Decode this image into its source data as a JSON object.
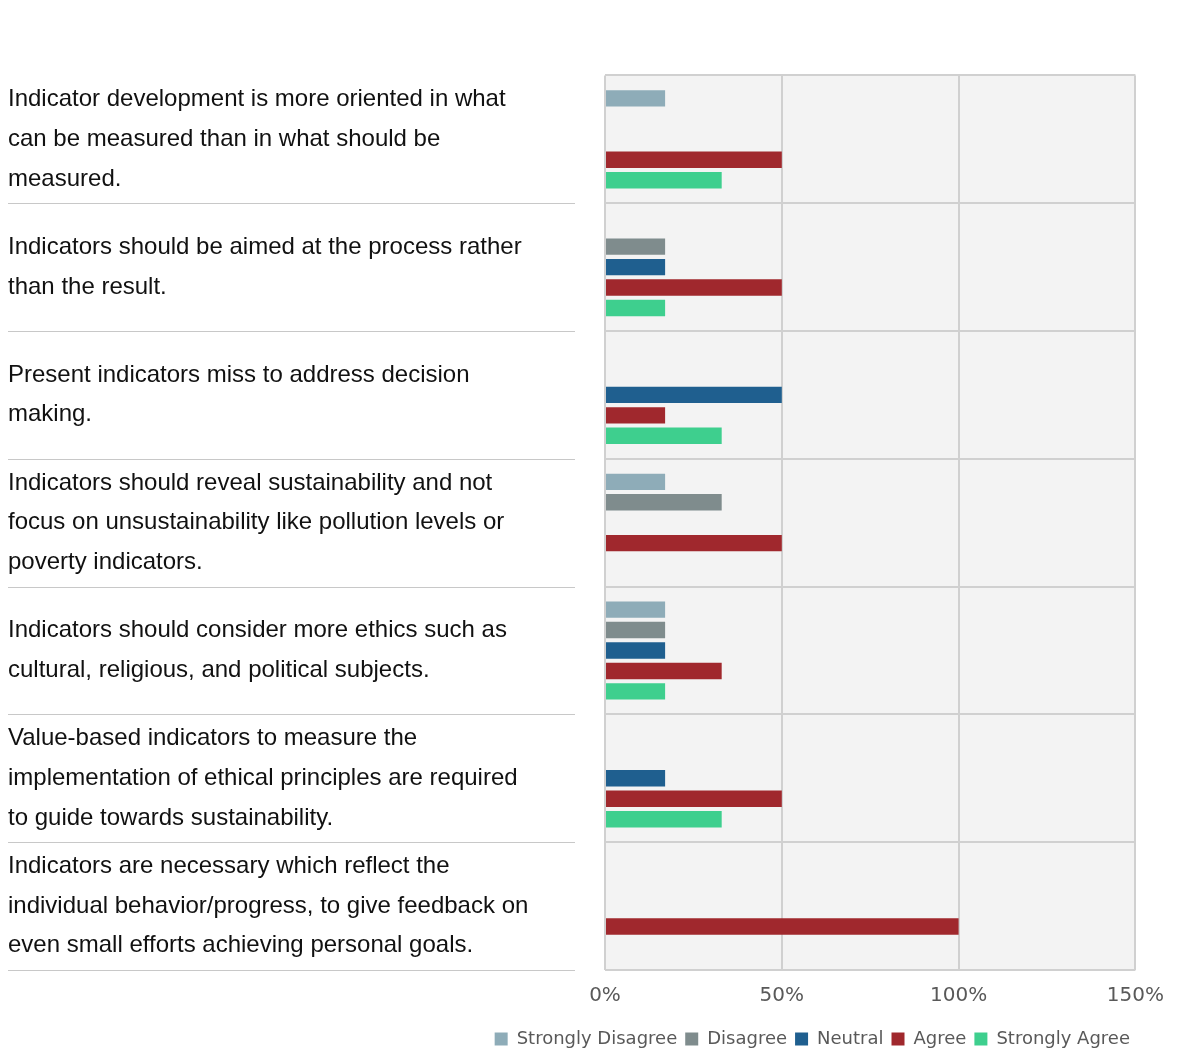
{
  "chart_data": {
    "type": "bar",
    "orientation": "horizontal",
    "categories": [
      "Indicator development is more oriented in what can be measured than in what should be measured.",
      "Indicators should be aimed at the process rather than the result.",
      "Present indicators miss to address decision making.",
      "Indicators should reveal sustainability and not focus on unsustainability like pollution levels or poverty indicators.",
      "Indicators should consider more ethics such as cultural, religious, and political subjects.",
      "Value-based indicators to measure the implementation of ethical principles are required to guide towards sustainability.",
      "Indicators are necessary which reflect the individual behavior/progress, to give feedback on even small efforts achieving personal goals."
    ],
    "series": [
      {
        "name": "Strongly Disagree",
        "color": "#8eacb8",
        "values": [
          17,
          0,
          0,
          17,
          17,
          0,
          0
        ]
      },
      {
        "name": "Disagree",
        "color": "#7f8c8d",
        "values": [
          0,
          17,
          0,
          33,
          17,
          0,
          0
        ]
      },
      {
        "name": "Neutral",
        "color": "#1f5f8f",
        "values": [
          0,
          17,
          50,
          0,
          17,
          17,
          0
        ]
      },
      {
        "name": "Agree",
        "color": "#a0282d",
        "values": [
          50,
          50,
          17,
          50,
          33,
          50,
          100
        ]
      },
      {
        "name": "Strongly Agree",
        "color": "#3ecf8e",
        "values": [
          33,
          17,
          33,
          0,
          17,
          33,
          0
        ]
      }
    ],
    "xlim": [
      0,
      150
    ],
    "xticks": [
      {
        "value": 0,
        "label": "0%"
      },
      {
        "value": 50,
        "label": "50%"
      },
      {
        "value": 100,
        "label": "100%"
      },
      {
        "value": 150,
        "label": "150%"
      }
    ],
    "grid": true,
    "legend": "bottom"
  }
}
